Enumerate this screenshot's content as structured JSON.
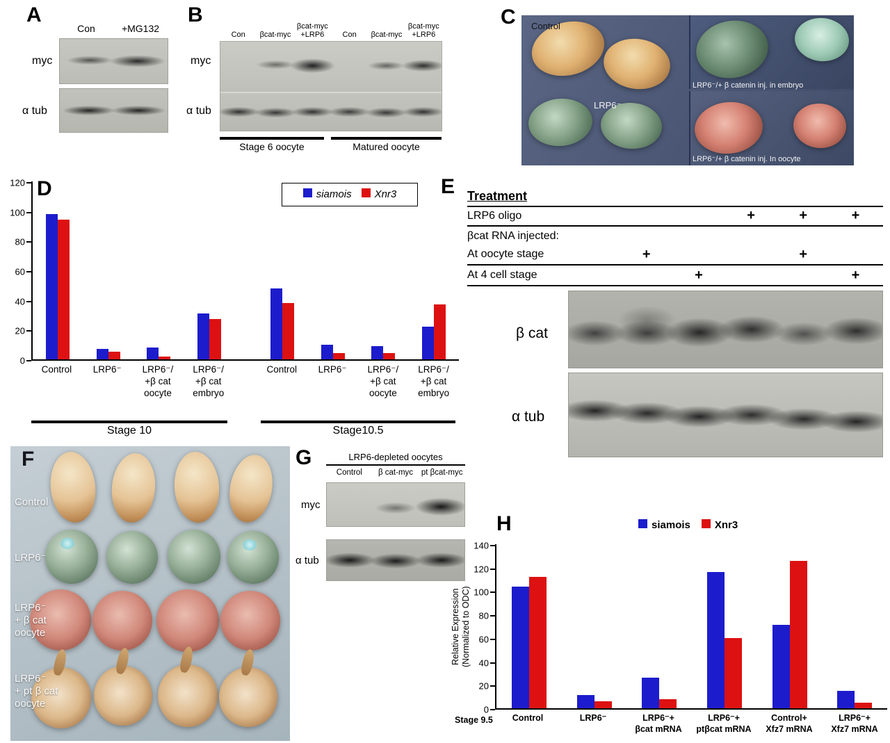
{
  "panels": {
    "A": {
      "label": "A",
      "lane_labels": [
        "Con",
        "+MG132"
      ],
      "row_labels": [
        "myc",
        "α tub"
      ]
    },
    "B": {
      "label": "B",
      "lane_labels": [
        "Con",
        "βcat-myc",
        "βcat-myc\n+LRP6",
        "Con",
        "βcat-myc",
        "βcat-myc\n+LRP6"
      ],
      "row_labels": [
        "myc",
        "α tub"
      ],
      "group_labels": [
        "Stage 6 oocyte",
        "Matured oocyte"
      ]
    },
    "C": {
      "label": "C",
      "captions": {
        "control": "Control",
        "lrp6": "LRP6⁻",
        "right_top": "LRP6⁻/+ β catenin inj. in embryo",
        "right_bottom": "LRP6⁻/+ β catenin inj. In  oocyte"
      }
    },
    "D": {
      "label": "D"
    },
    "E": {
      "label": "E",
      "header": "Treatment",
      "row1_label": "LRP6 oligo",
      "row2_label_a": "βcat RNA injected:",
      "row2_label_b": "At oocyte stage",
      "row3_label": "At 4 cell stage",
      "plus_row1": [
        "",
        "",
        "",
        "+",
        "+",
        "+"
      ],
      "plus_row2": [
        "",
        "+",
        "",
        "",
        "+",
        ""
      ],
      "plus_row3": [
        "",
        "",
        "+",
        "",
        "",
        "+"
      ],
      "blot_row_labels": [
        "β cat",
        "α tub"
      ]
    },
    "F": {
      "label": "F",
      "captions": [
        "Control",
        "LRP6⁻",
        "LRP6⁻\n+ β cat\noocyte",
        "LRP6⁻\n+ pt β cat\noocyte"
      ]
    },
    "G": {
      "label": "G",
      "header": "LRP6-depleted oocytes",
      "lane_labels": [
        "Control",
        "β cat-myc",
        "pt βcat-myc"
      ],
      "row_labels": [
        "myc",
        "α tub"
      ]
    },
    "H": {
      "label": "H"
    }
  },
  "chart_data": [
    {
      "id": "D",
      "type": "bar",
      "categories": [
        "Control",
        "LRP6⁻",
        "LRP6⁻/\n+β cat\noocyte",
        "LRP6⁻/\n+β cat\nembryo",
        "Control",
        "LRP6⁻",
        "LRP6⁻/\n+β cat\noocyte",
        "LRP6⁻/\n+β cat\nembryo"
      ],
      "series": [
        {
          "name": "siamois",
          "color": "#1c1ccd",
          "values": [
            98,
            7,
            8,
            31,
            48,
            10,
            9,
            22
          ]
        },
        {
          "name": "Xnr3",
          "color": "#dd1111",
          "values": [
            94,
            5,
            2,
            27,
            38,
            4,
            4,
            37
          ]
        }
      ],
      "group_labels": [
        "Stage 10",
        "Stage10.5"
      ],
      "ylim": [
        0,
        120
      ],
      "yticks": [
        0,
        20,
        40,
        60,
        80,
        100,
        120
      ],
      "gap_after": [
        3
      ],
      "legend_position": "top-right",
      "grid": false
    },
    {
      "id": "H",
      "type": "bar",
      "categories": [
        "Control",
        "LRP6⁻",
        "LRP6⁻+\nβcat mRNA",
        "LRP6⁻+\nptβcat mRNA",
        "Control+\nXfz7 mRNA",
        "LRP6⁻+\nXfz7 mRNA"
      ],
      "series": [
        {
          "name": "siamois",
          "color": "#1c1ccd",
          "values": [
            104,
            11,
            26,
            116,
            71,
            15
          ]
        },
        {
          "name": "Xnr3",
          "color": "#dd1111",
          "values": [
            112,
            6,
            8,
            60,
            126,
            5
          ]
        }
      ],
      "ylabel": "Relative Expression\n(Normalized to ODC)",
      "xlabel_prefix": "Stage 9.5",
      "ylim": [
        0,
        140
      ],
      "yticks": [
        0,
        20,
        40,
        60,
        80,
        100,
        120,
        140
      ],
      "legend_position": "top",
      "grid": false
    }
  ],
  "colors": {
    "siamois_blue": "#1c1ccd",
    "xnr3_red": "#dd1111"
  }
}
